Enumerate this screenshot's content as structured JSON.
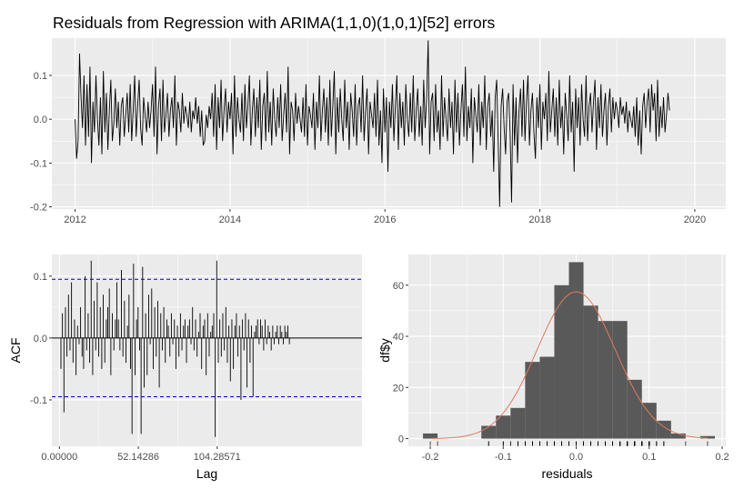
{
  "title": "Residuals from Regression with ARIMA(1,1,0)(1,0,1)[52] errors",
  "colors": {
    "panel_bg": "#ebebeb",
    "grid": "#ffffff",
    "line": "#000000",
    "ci_line": "#0000cc",
    "bar_fill": "#595959",
    "density": "#e07b5a"
  },
  "chart_data": [
    {
      "type": "line",
      "name": "residual-time-series",
      "xlim": [
        2011.7,
        2020.4
      ],
      "ylim": [
        -0.205,
        0.185
      ],
      "x_ticks": [
        2012,
        2014,
        2016,
        2018,
        2020
      ],
      "y_ticks": [
        0.1,
        0.0,
        -0.1,
        -0.2
      ],
      "x_tick_labels": [
        "2012",
        "2014",
        "2016",
        "2018",
        "2020"
      ],
      "y_tick_labels": [
        "0.1",
        "0.0",
        "-0.1",
        "-0.2"
      ],
      "start": 2012.0,
      "frequency": 52,
      "values": [
        0.0,
        -0.09,
        -0.05,
        0.15,
        0.05,
        -0.02,
        0.1,
        -0.06,
        0.08,
        -0.04,
        0.12,
        -0.1,
        0.04,
        -0.03,
        0.1,
        0.0,
        -0.06,
        0.05,
        -0.08,
        0.11,
        -0.03,
        0.06,
        -0.07,
        0.02,
        0.09,
        -0.05,
        -0.01,
        0.07,
        -0.02,
        0.04,
        -0.06,
        0.03,
        0.05,
        -0.04,
        0.01,
        0.06,
        -0.03,
        0.08,
        -0.05,
        0.02,
        0.1,
        -0.04,
        0.03,
        0.09,
        -0.02,
        -0.06,
        0.05,
        0.01,
        -0.03,
        0.04,
        -0.02,
        0.02,
        0.08,
        -0.04,
        0.12,
        -0.08,
        0.03,
        0.07,
        -0.05,
        0.09,
        -0.03,
        0.01,
        0.06,
        -0.04,
        0.02,
        0.05,
        -0.02,
        0.1,
        -0.06,
        0.04,
        0.02,
        -0.03,
        0.06,
        -0.01,
        0.03,
        0.01,
        -0.02,
        0.04,
        -0.03,
        0.02,
        0.0,
        0.05,
        -0.01,
        0.03,
        -0.04,
        0.02,
        -0.06,
        -0.05,
        0.01,
        -0.02,
        0.03,
        0.0,
        0.06,
        -0.04,
        0.08,
        -0.07,
        0.05,
        -0.02,
        0.09,
        -0.05,
        0.02,
        0.07,
        -0.03,
        0.04,
        0.0,
        0.06,
        -0.08,
        0.1,
        -0.04,
        0.05,
        0.0,
        -0.03,
        0.06,
        -0.05,
        0.08,
        -0.02,
        0.03,
        0.1,
        -0.06,
        0.02,
        0.07,
        -0.04,
        0.05,
        -0.02,
        0.09,
        -0.07,
        0.03,
        0.06,
        -0.05,
        0.11,
        -0.03,
        0.04,
        -0.06,
        0.07,
        0.0,
        -0.04,
        0.05,
        -0.02,
        0.08,
        -0.05,
        0.01,
        0.06,
        -0.03,
        0.12,
        -0.08,
        0.04,
        0.02,
        -0.05,
        0.06,
        -0.01,
        0.03,
        0.0,
        -0.03,
        0.05,
        -0.04,
        0.08,
        -0.06,
        0.03,
        0.01,
        -0.02,
        0.06,
        -0.07,
        0.04,
        -0.02,
        0.1,
        -0.05,
        0.02,
        0.07,
        -0.03,
        0.05,
        -0.06,
        0.09,
        -0.04,
        0.03,
        0.11,
        -0.08,
        0.05,
        -0.03,
        0.07,
        0.0,
        -0.05,
        0.09,
        -0.02,
        0.04,
        -0.07,
        0.06,
        0.02,
        -0.04,
        0.08,
        -0.06,
        0.03,
        0.05,
        -0.03,
        0.1,
        -0.05,
        0.02,
        0.07,
        -0.08,
        0.04,
        0.01,
        -0.02,
        0.06,
        -0.04,
        0.09,
        -0.06,
        0.02,
        -0.1,
        0.07,
        -0.03,
        0.05,
        -0.12,
        0.04,
        -0.02,
        0.08,
        -0.05,
        0.03,
        0.1,
        -0.07,
        0.06,
        -0.02,
        0.04,
        -0.06,
        0.08,
        0.0,
        -0.04,
        0.06,
        -0.03,
        0.1,
        -0.05,
        0.02,
        0.07,
        -0.04,
        0.03,
        -0.06,
        0.09,
        -0.02,
        0.05,
        0.18,
        -0.08,
        0.04,
        0.06,
        -0.05,
        0.08,
        -0.03,
        0.02,
        -0.07,
        0.1,
        -0.04,
        0.05,
        0.0,
        -0.05,
        0.07,
        -0.02,
        0.04,
        -0.08,
        0.09,
        -0.03,
        0.06,
        -0.06,
        0.02,
        0.08,
        -0.04,
        0.12,
        -0.05,
        0.03,
        -0.02,
        0.07,
        -0.1,
        0.05,
        0.01,
        -0.03,
        0.08,
        -0.06,
        0.04,
        -0.02,
        0.1,
        -0.07,
        0.03,
        0.06,
        -0.04,
        0.02,
        -0.12,
        0.05,
        0.09,
        -0.05,
        -0.2,
        0.03,
        0.07,
        -0.02,
        -0.08,
        0.04,
        0.06,
        -0.03,
        -0.19,
        0.08,
        -0.06,
        0.05,
        -0.1,
        0.02,
        0.07,
        -0.04,
        0.09,
        -0.05,
        0.04,
        0.1,
        -0.06,
        0.02,
        0.06,
        -0.03,
        -0.09,
        0.05,
        -0.02,
        0.08,
        -0.07,
        0.04,
        0.0,
        0.06,
        -0.05,
        0.11,
        -0.03,
        0.02,
        0.07,
        -0.04,
        0.05,
        -0.06,
        0.09,
        -0.02,
        0.03,
        -0.08,
        0.06,
        0.01,
        -0.05,
        0.1,
        -0.03,
        0.04,
        -0.12,
        0.07,
        -0.02,
        0.05,
        -0.06,
        0.08,
        0.0,
        -0.04,
        0.1,
        -0.05,
        0.03,
        0.06,
        -0.03,
        0.04,
        0.09,
        -0.07,
        0.05,
        -0.02,
        0.08,
        -0.04,
        0.02,
        0.06,
        -0.06,
        0.03,
        0.07,
        -0.03,
        0.05,
        0.0,
        0.04,
        0.02,
        -0.02,
        0.05,
        0.01,
        0.03,
        -0.01,
        0.04,
        -0.03,
        0.02,
        0.0,
        -0.02,
        0.03,
        -0.04,
        0.05,
        -0.06,
        0.02,
        -0.08,
        0.03,
        0.06,
        -0.02,
        0.04,
        0.07,
        -0.03,
        0.08,
        0.02,
        0.06,
        -0.05,
        0.09,
        -0.04,
        0.03,
        -0.02,
        0.05,
        -0.03,
        0.01,
        0.06,
        0.02
      ]
    },
    {
      "type": "bar",
      "name": "acf",
      "ylabel": "ACF",
      "xlabel": "Lag",
      "xlim": [
        -5,
        200
      ],
      "ylim": [
        -0.175,
        0.135
      ],
      "x_ticks": [
        0.0,
        52.14286,
        104.28571
      ],
      "x_tick_labels": [
        "0.00000",
        "52.14286",
        "104.28571"
      ],
      "y_ticks": [
        0.1,
        0.0,
        -0.1
      ],
      "y_tick_labels": [
        "0.1",
        "0.0",
        "-0.1"
      ],
      "ci": [
        0.095,
        -0.095
      ],
      "lag_start": 1,
      "values": [
        -0.05,
        0.04,
        -0.12,
        0.05,
        -0.03,
        0.07,
        -0.02,
        0.09,
        -0.04,
        0.03,
        -0.06,
        0.02,
        -0.01,
        0.05,
        -0.03,
        -0.05,
        0.1,
        -0.02,
        0.04,
        -0.04,
        0.125,
        -0.06,
        0.06,
        -0.02,
        0.09,
        -0.03,
        0.05,
        -0.05,
        0.07,
        -0.04,
        0.03,
        0.05,
        0.08,
        -0.06,
        0.04,
        -0.02,
        0.03,
        0.09,
        0.03,
        -0.02,
        0.11,
        -0.03,
        0.06,
        -0.04,
        0.02,
        0.07,
        -0.05,
        -0.155,
        0.12,
        -0.06,
        0.03,
        0.05,
        -0.02,
        -0.155,
        0.115,
        -0.08,
        0.04,
        -0.06,
        0.07,
        -0.01,
        0.08,
        -0.05,
        0.05,
        -0.03,
        0.06,
        -0.08,
        0.04,
        -0.02,
        0.05,
        -0.04,
        0.03,
        0.02,
        -0.03,
        0.04,
        -0.01,
        0.03,
        -0.05,
        0.02,
        -0.03,
        0.04,
        -0.02,
        0.02,
        0.03,
        -0.04,
        0.02,
        0.03,
        -0.01,
        0.05,
        -0.02,
        0.03,
        -0.03,
        0.01,
        0.04,
        -0.05,
        0.02,
        0.03,
        -0.06,
        0.04,
        -0.03,
        0.01,
        0.02,
        0.04,
        -0.16,
        0.125,
        -0.04,
        0.03,
        -0.03,
        0.04,
        -0.02,
        0.05,
        -0.04,
        0.02,
        -0.07,
        0.03,
        -0.05,
        0.02,
        0.04,
        -0.03,
        0.02,
        -0.1,
        0.03,
        -0.02,
        0.04,
        -0.08,
        0.03,
        -0.04,
        0.02,
        -0.095,
        0.01,
        0.02,
        0.03,
        -0.01,
        0.03,
        0.02,
        -0.02,
        0.03,
        -0.01,
        0.02,
        0.01,
        -0.02,
        0.02,
        -0.01,
        0.01,
        0.02,
        -0.01,
        0.02,
        0.01,
        -0.01,
        0.02,
        0.01,
        0.02,
        -0.01
      ]
    },
    {
      "type": "bar",
      "name": "residual-histogram",
      "xlabel": "residuals",
      "ylabel": "df$y",
      "xlim": [
        -0.23,
        0.205
      ],
      "ylim": [
        -3,
        72
      ],
      "x_ticks": [
        -0.2,
        -0.1,
        0.0,
        0.1,
        0.2
      ],
      "x_tick_labels": [
        "-0.2",
        "-0.1",
        "0.0",
        "0.1",
        "0.2"
      ],
      "y_ticks": [
        0,
        20,
        40,
        60
      ],
      "y_tick_labels": [
        "0",
        "20",
        "40",
        "60"
      ],
      "bin_width": 0.02,
      "bin_lefts": [
        -0.21,
        -0.19,
        -0.17,
        -0.15,
        -0.13,
        -0.11,
        -0.09,
        -0.07,
        -0.05,
        -0.03,
        -0.01,
        0.01,
        0.03,
        0.05,
        0.07,
        0.09,
        0.11,
        0.13,
        0.15,
        0.17
      ],
      "counts": [
        2,
        0,
        0,
        0,
        5,
        9,
        12,
        30,
        32,
        60,
        69,
        52,
        46,
        46,
        23,
        14,
        7,
        2,
        0,
        1
      ],
      "density_mean": 0.0,
      "density_sd": 0.0535,
      "density_scale": 7.7
    }
  ]
}
